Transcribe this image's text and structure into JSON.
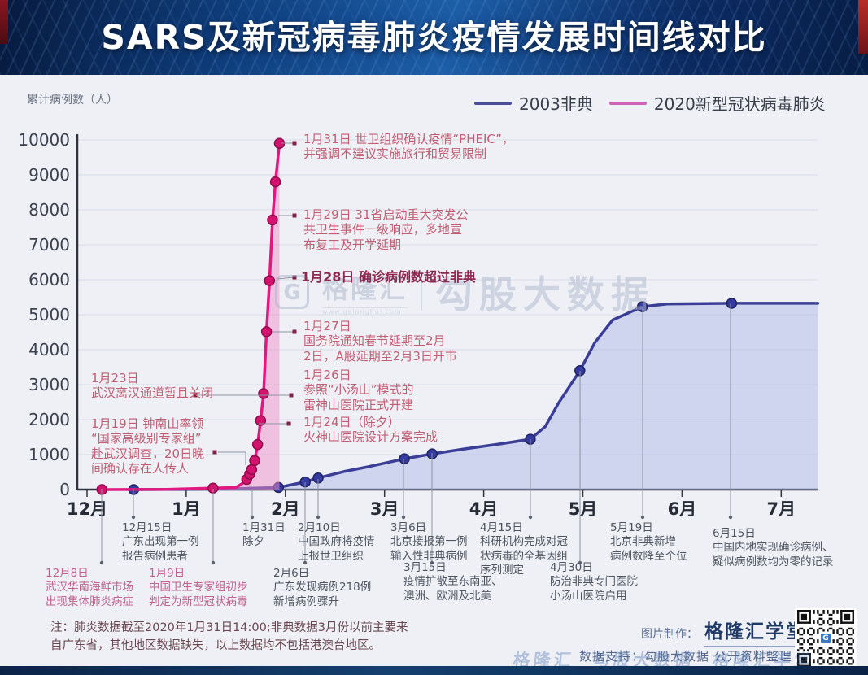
{
  "banner": {
    "title": "SARS及新冠病毒肺炎疫情发展时间线对比"
  },
  "chart": {
    "y_axis_title": "累计病例数（人）",
    "y_ticks": [
      0,
      1000,
      2000,
      3000,
      4000,
      5000,
      6000,
      7000,
      8000,
      9000,
      10000
    ],
    "months": [
      "12月",
      "1月",
      "2月",
      "3月",
      "4月",
      "5月",
      "6月",
      "7月"
    ],
    "legend": [
      {
        "label": "2003非典",
        "color": "#4a4d99"
      },
      {
        "label": "2020新型冠状病毒肺炎",
        "color": "#cf63b5"
      }
    ]
  },
  "chart_data": {
    "type": "line",
    "title": "SARS及新冠病毒肺炎疫情发展时间线对比",
    "ylabel": "累计病例数（人）",
    "ylim": [
      0,
      10000
    ],
    "x_axis_months": [
      "12月",
      "1月",
      "2月",
      "3月",
      "4月",
      "5月",
      "6月",
      "7月"
    ],
    "grid": true,
    "legend_position": "top-right",
    "series": [
      {
        "name": "2003非典",
        "color": "#3b3e96",
        "fill": "rgba(170,180,230,0.45)",
        "points": [
          {
            "date": "12月15日",
            "mx": 0.47,
            "value": 1,
            "dot": true
          },
          {
            "mx": 1.0,
            "value": 8
          },
          {
            "mx": 1.5,
            "value": 25
          },
          {
            "mx": 1.93,
            "value": 60,
            "dot": true
          },
          {
            "date": "2月6日",
            "mx": 2.2,
            "value": 218,
            "dot": true
          },
          {
            "date": "2月10日",
            "mx": 2.33,
            "value": 330,
            "dot": true
          },
          {
            "mx": 2.6,
            "value": 520
          },
          {
            "mx": 2.85,
            "value": 660
          },
          {
            "date": "3月6日",
            "mx": 3.2,
            "value": 880,
            "dot": true
          },
          {
            "date": "3月15日",
            "mx": 3.48,
            "value": 1020,
            "dot": true
          },
          {
            "mx": 3.8,
            "value": 1160
          },
          {
            "mx": 4.15,
            "value": 1300
          },
          {
            "date": "4月15日",
            "mx": 4.47,
            "value": 1440,
            "dot": true
          },
          {
            "mx": 4.62,
            "value": 1800
          },
          {
            "mx": 4.75,
            "value": 2450
          },
          {
            "date": "4月30日",
            "mx": 4.97,
            "value": 3400,
            "dot": true
          },
          {
            "mx": 5.12,
            "value": 4200
          },
          {
            "mx": 5.3,
            "value": 4850
          },
          {
            "date": "5月19日",
            "mx": 5.6,
            "value": 5230,
            "dot": true
          },
          {
            "mx": 5.85,
            "value": 5310
          },
          {
            "date": "6月15日",
            "mx": 6.5,
            "value": 5327,
            "dot": true
          },
          {
            "mx": 7.37,
            "value": 5327
          }
        ]
      },
      {
        "name": "2020新型冠状病毒肺炎",
        "color": "#e0187f",
        "fill": "rgba(242,143,202,0.5)",
        "points": [
          {
            "date": "12月8日",
            "mx": 0.15,
            "value": 1,
            "dot": true
          },
          {
            "mx": 0.8,
            "value": 5
          },
          {
            "date": "1月9日",
            "mx": 1.27,
            "value": 41,
            "dot": true
          },
          {
            "mx": 1.5,
            "value": 60
          },
          {
            "date": "1月19日",
            "mx": 1.58,
            "value": 198
          },
          {
            "date": "1月20日",
            "mx": 1.61,
            "value": 291,
            "dot": true
          },
          {
            "date": "1月21日",
            "mx": 1.64,
            "value": 440,
            "dot": true
          },
          {
            "date": "1月22日",
            "mx": 1.66,
            "value": 571,
            "dot": true
          },
          {
            "date": "1月23日",
            "mx": 1.69,
            "value": 830,
            "dot": true
          },
          {
            "date": "1月24日",
            "mx": 1.72,
            "value": 1287,
            "dot": true
          },
          {
            "date": "1月25日",
            "mx": 1.75,
            "value": 1975,
            "dot": true
          },
          {
            "date": "1月26日",
            "mx": 1.78,
            "value": 2744,
            "dot": true
          },
          {
            "date": "1月27日",
            "mx": 1.81,
            "value": 4515,
            "dot": true
          },
          {
            "date": "1月28日",
            "mx": 1.84,
            "value": 5974,
            "dot": true
          },
          {
            "date": "1月29日",
            "mx": 1.87,
            "value": 7711,
            "dot": true
          },
          {
            "mx": 1.9,
            "value": 8800,
            "dot": true
          },
          {
            "date": "1月31日",
            "mx": 1.94,
            "value": 9900,
            "dot": true
          }
        ]
      }
    ]
  },
  "annotations": {
    "right": [
      {
        "text": "1月31日 世卫组织确认疫情“PHEIC”，\n并强调不建议实施旅行和贸易限制"
      },
      {
        "text": "1月29日 31省启动重大突发公\n共卫生事件一级响应，多地宣\n布复工及开学延期"
      },
      {
        "text": "1月28日 确诊病例数超过非典"
      },
      {
        "text": "1月27日\n国务院通知春节延期至2月\n2日，A股延期至2月3日开市"
      },
      {
        "text": "1月26日\n参照“小汤山”模式的\n雷神山医院正式开建"
      },
      {
        "text": "1月24日（除夕）\n火神山医院设计方案完成"
      }
    ],
    "left": [
      {
        "text": "1月23日\n武汉离汉通道暂且关闭"
      },
      {
        "text": "1月19日 钟南山率领\n“国家高级别专家组”\n赴武汉调查，20日晚\n间确认存在人传人"
      }
    ],
    "below_row1": [
      {
        "text": "12月15日\n广东出现第一例\n报告病例患者"
      },
      {
        "text": "1月31日\n除夕"
      },
      {
        "text": "2月10日\n中国政府将疫情\n上报世卫组织"
      },
      {
        "text": "3月6日\n北京接报第一例\n输入性非典病例"
      },
      {
        "text": "4月15日\n科研机构完成对冠\n状病毒的全基因组\n序列测定"
      },
      {
        "text": "5月19日\n北京非典新增\n病例数降至个位"
      },
      {
        "text": "6月15日\n中国内地实现确诊病例、\n疑似病例数均为零的记录"
      }
    ],
    "below_row2": [
      {
        "text": "12月8日\n武汉华南海鲜市场\n出现集体肺炎病症",
        "tone": "rose"
      },
      {
        "text": "1月9日\n中国卫生专家组初步\n判定为新型冠状病毒",
        "tone": "rose"
      },
      {
        "text": "2月6日\n广东发现病例218例\n新增病例骤升",
        "tone": "gray"
      },
      {
        "text": "3月15日\n疫情扩散至东南亚、\n澳洲、欧洲及北美",
        "tone": "gray"
      },
      {
        "text": "4月30日\n防治非典专门医院\n小汤山医院启用",
        "tone": "gray"
      }
    ]
  },
  "watermark": {
    "logo_letter": "G",
    "logo_name": "格隆汇",
    "url": "www.gelonghui.com",
    "brand": "勾股大数据"
  },
  "footer": {
    "note": "注：肺炎数据截至2020年1月31日14:00;非典数据3月份以前主要来\n自广东省，其他地区数据缺失，以上数据均不包括港澳台地区。",
    "credit_label": "图片制作：",
    "credit_value": "格隆汇学堂",
    "data_label": "数据支持：",
    "data_value": "勾股大数据 公开资料整理"
  }
}
